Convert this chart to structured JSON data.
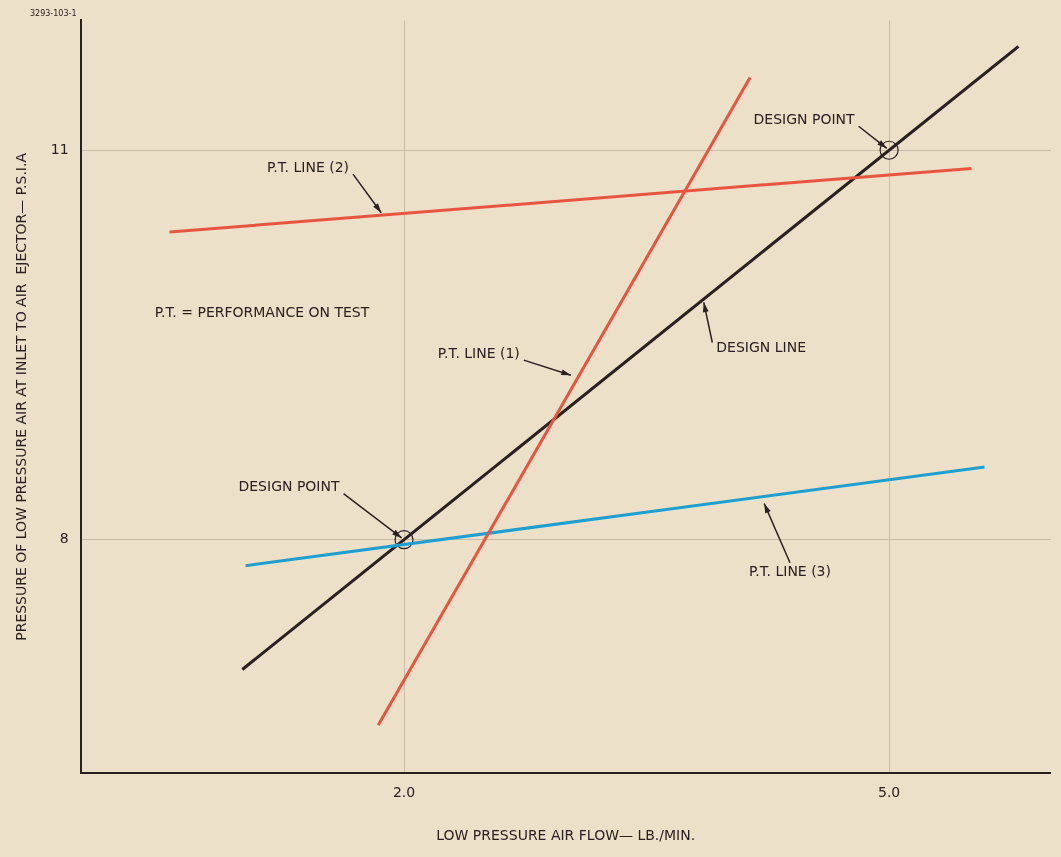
{
  "chart_data": {
    "type": "line",
    "xlabel": "LOW PRESSURE AIR FLOW— LB./MIN.",
    "ylabel": "PRESSURE OF LOW PRESSURE AIR AT INLET TO AIR  EJECTOR— P.S.I.A",
    "xlim": [
      0,
      6
    ],
    "xticks": [
      {
        "value": 2,
        "label": "2.0"
      },
      {
        "value": 5,
        "label": "5.0"
      }
    ],
    "ylim": [
      6.2,
      12
    ],
    "yticks": [
      8,
      11
    ],
    "grid": true,
    "legend": false,
    "line_style": "solid",
    "marker": "none",
    "series": [
      {
        "color": "#e8553f",
        "x": [
          1.84,
          4.14
        ],
        "values": [
          6.57,
          11.56
        ]
      },
      {
        "color": "#e8553f",
        "x": [
          0.55,
          5.51
        ],
        "values": [
          10.37,
          10.86
        ]
      },
      {
        "color": "#1f9fd0",
        "x": [
          1.02,
          5.59
        ],
        "values": [
          7.8,
          8.56
        ]
      },
      {
        "color": "#2a2020",
        "x": [
          1.0,
          5.8
        ],
        "values": [
          7.0,
          11.8
        ]
      },
      {
        "type": "scatter",
        "color": "#2a2020",
        "marker": "circle",
        "x": [
          2,
          5
        ],
        "values": [
          8,
          11
        ]
      }
    ],
    "annotations": [
      "3293-103-1",
      "P.T. = PERFORMANCE ON TEST",
      {
        "text": "P.T. LINE (2)",
        "x": 1.87,
        "y": 10.5
      },
      {
        "text": "P.T. LINE (1)",
        "x": 3.05,
        "y": 9.26
      },
      {
        "text": "DESIGN LINE",
        "x": 3.85,
        "y": 9.85
      },
      {
        "text": "DESIGN POINT",
        "x": 2,
        "y": 8
      },
      {
        "text": "DESIGN POINT",
        "x": 5,
        "y": 11
      },
      {
        "text": "P.T. LINE (3)",
        "x": 4.22,
        "y": 8.3
      }
    ]
  }
}
